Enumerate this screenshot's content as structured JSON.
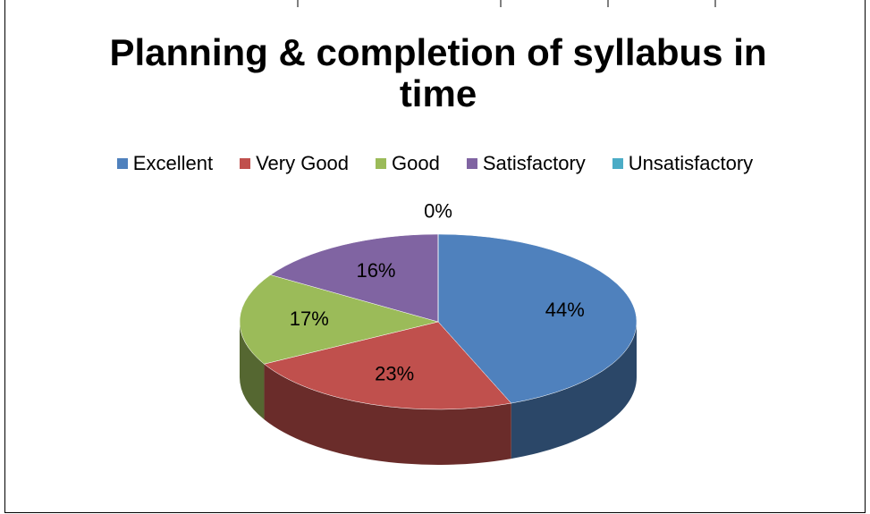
{
  "chart_data": {
    "type": "pie",
    "title": "Planning & completion of syllabus in time",
    "categories": [
      "Excellent",
      "Very Good",
      "Good",
      "Satisfactory",
      "Unsatisfactory"
    ],
    "values": [
      44,
      23,
      17,
      16,
      0
    ],
    "value_labels": [
      "44%",
      "23%",
      "17%",
      "16%",
      "0%"
    ],
    "colors": [
      "#4f81bd",
      "#c0504d",
      "#9bbb59",
      "#8064a2",
      "#4bacc6"
    ],
    "legend": "top"
  }
}
